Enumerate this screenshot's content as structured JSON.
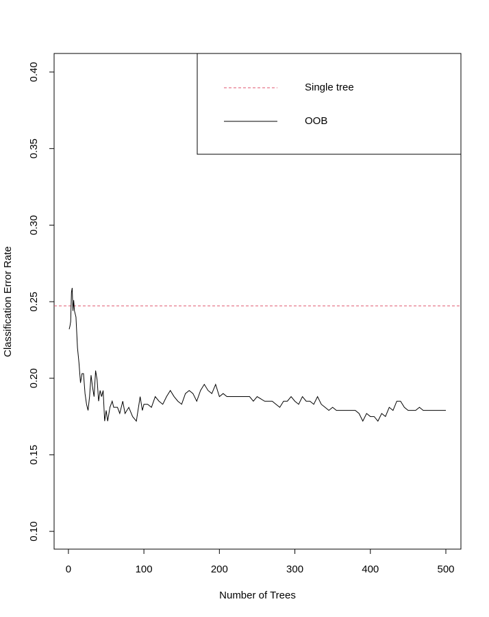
{
  "chart_data": {
    "type": "line",
    "x_label": "Number of Trees",
    "y_label": "Classification Error Rate",
    "xlim": [
      -18.96,
      519.96
    ],
    "ylim": [
      0.0884,
      0.4121
    ],
    "xticks": [
      0,
      100,
      200,
      300,
      400,
      500
    ],
    "yticks": [
      {
        "value": 0.1,
        "label": "0.10"
      },
      {
        "value": 0.15,
        "label": "0.15"
      },
      {
        "value": 0.2,
        "label": "0.20"
      },
      {
        "value": 0.25,
        "label": "0.25"
      },
      {
        "value": 0.3,
        "label": "0.30"
      },
      {
        "value": 0.35,
        "label": "0.35"
      },
      {
        "value": 0.4,
        "label": "0.40"
      }
    ],
    "legend_position": "topright",
    "reference_lines": [
      {
        "name": "Single tree",
        "value": 0.2473,
        "color": "#df536b",
        "dashed": true
      }
    ],
    "x": [
      1,
      2,
      3,
      4,
      5,
      6,
      7,
      8,
      10,
      12,
      14,
      16,
      18,
      20,
      22,
      24,
      26,
      28,
      30,
      32,
      34,
      36,
      38,
      40,
      42,
      44,
      46,
      48,
      50,
      52,
      55,
      58,
      60,
      65,
      68,
      72,
      75,
      80,
      85,
      90,
      95,
      98,
      100,
      105,
      110,
      115,
      120,
      125,
      130,
      135,
      140,
      145,
      150,
      155,
      160,
      165,
      170,
      175,
      180,
      185,
      190,
      195,
      200,
      205,
      210,
      220,
      230,
      240,
      245,
      250,
      260,
      270,
      275,
      280,
      285,
      290,
      295,
      300,
      305,
      310,
      315,
      320,
      325,
      330,
      335,
      340,
      345,
      350,
      355,
      360,
      370,
      380,
      385,
      390,
      395,
      400,
      405,
      410,
      415,
      420,
      425,
      430,
      435,
      440,
      445,
      450,
      460,
      465,
      470,
      480,
      490,
      500
    ],
    "series": [
      {
        "name": "OOB",
        "color": "#000000",
        "values": [
          0.232,
          0.234,
          0.237,
          0.256,
          0.259,
          0.244,
          0.251,
          0.244,
          0.24,
          0.22,
          0.21,
          0.197,
          0.203,
          0.203,
          0.19,
          0.183,
          0.179,
          0.188,
          0.202,
          0.194,
          0.188,
          0.205,
          0.199,
          0.185,
          0.192,
          0.188,
          0.192,
          0.172,
          0.179,
          0.172,
          0.181,
          0.185,
          0.181,
          0.181,
          0.177,
          0.185,
          0.177,
          0.181,
          0.175,
          0.172,
          0.188,
          0.179,
          0.183,
          0.183,
          0.181,
          0.188,
          0.185,
          0.183,
          0.188,
          0.192,
          0.188,
          0.185,
          0.183,
          0.19,
          0.192,
          0.19,
          0.185,
          0.192,
          0.196,
          0.192,
          0.19,
          0.196,
          0.188,
          0.19,
          0.188,
          0.188,
          0.188,
          0.188,
          0.185,
          0.188,
          0.185,
          0.185,
          0.183,
          0.181,
          0.185,
          0.185,
          0.188,
          0.185,
          0.183,
          0.188,
          0.185,
          0.185,
          0.183,
          0.188,
          0.183,
          0.181,
          0.179,
          0.181,
          0.179,
          0.179,
          0.179,
          0.179,
          0.177,
          0.172,
          0.177,
          0.175,
          0.175,
          0.172,
          0.177,
          0.175,
          0.181,
          0.179,
          0.185,
          0.185,
          0.181,
          0.179,
          0.179,
          0.181,
          0.179,
          0.179,
          0.179,
          0.179
        ]
      }
    ]
  }
}
